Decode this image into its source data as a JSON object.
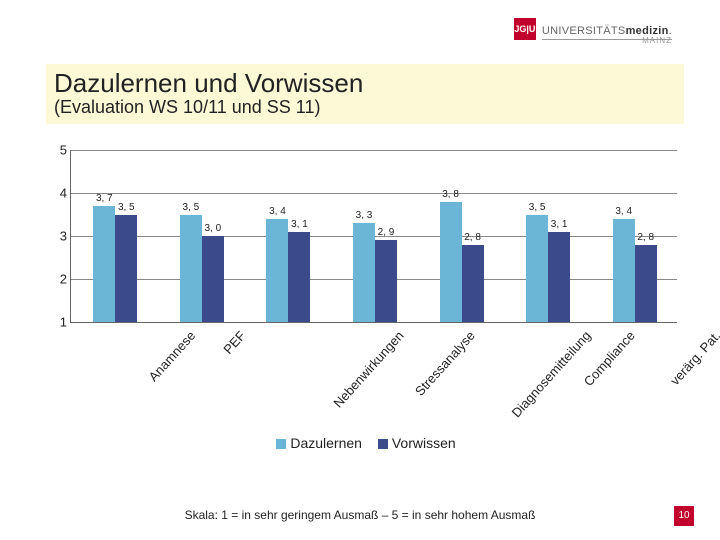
{
  "brand": {
    "sq": "JG|U",
    "text_a": "UNIVERSITÄTS",
    "text_b": "medizin",
    "text_c": ".",
    "sub": "MAINZ"
  },
  "title": "Dazulernen und Vorwissen",
  "subtitle": "(Evaluation WS 10/11 und SS 11)",
  "chart": {
    "type": "bar-grouped",
    "ylim": [
      1,
      5
    ],
    "yticks": [
      1,
      2,
      3,
      4,
      5
    ],
    "series": [
      {
        "name": "Dazulernen",
        "color": "#6bb6d6"
      },
      {
        "name": "Vorwissen",
        "color": "#3a4a8a"
      }
    ],
    "categories": [
      "Anamnese",
      "PEF",
      "Nebenwirkungen",
      "Stressanalyse",
      "Diagnosemitteilung",
      "Compliance",
      "verärg. Pat."
    ],
    "values_a": [
      3.7,
      3.5,
      3.4,
      3.3,
      3.8,
      3.5,
      3.4
    ],
    "values_b": [
      3.5,
      3.0,
      3.1,
      2.9,
      2.8,
      3.1,
      2.8
    ],
    "labels_a": [
      "3, 7",
      "3, 5",
      "3, 4",
      "3, 3",
      "3, 8",
      "3, 5",
      "3, 4"
    ],
    "labels_b": [
      "3, 5",
      "3, 0",
      "3, 1",
      "2, 9",
      "2, 8",
      "3, 1",
      "2, 8"
    ],
    "background": "#ffffff",
    "grid_color": "#888888",
    "axis_color": "#666666",
    "label_fontsize": 10,
    "tick_fontsize": 13
  },
  "legend": {
    "a": "Dazulernen",
    "b": "Vorwissen"
  },
  "footer": "Skala: 1 = in sehr geringem Ausmaß – 5 = in sehr hohem Ausmaß",
  "pageno": "10"
}
